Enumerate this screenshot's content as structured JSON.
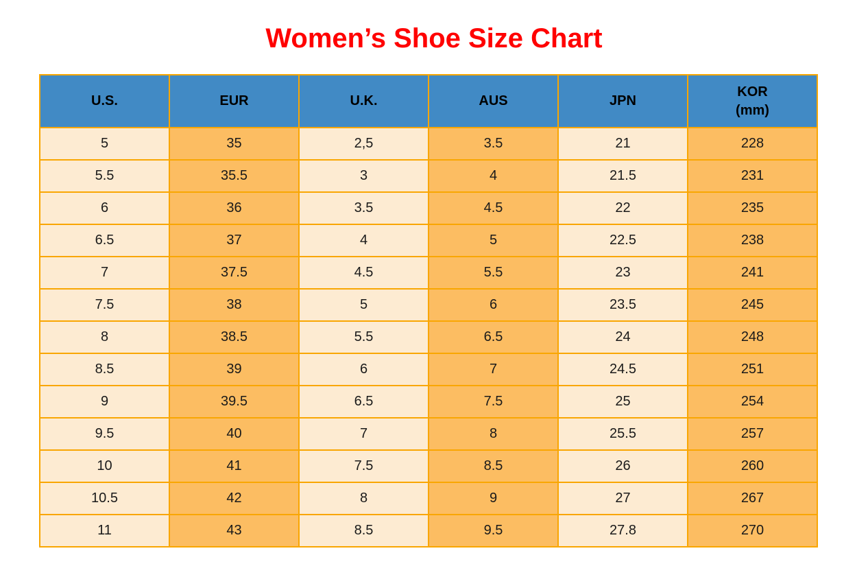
{
  "page": {
    "title": "Women’s Shoe Size Chart",
    "title_color": "#ff0000"
  },
  "chart_data": {
    "type": "table",
    "title": "Women’s Shoe Size Chart",
    "columns": [
      "U.S.",
      "EUR",
      "U.K.",
      "AUS",
      "JPN",
      "KOR\n(mm)"
    ],
    "column_keys": [
      "us",
      "eur",
      "uk",
      "aus",
      "jpn",
      "kor"
    ],
    "rows": [
      [
        "5",
        "35",
        "2,5",
        "3.5",
        "21",
        "228"
      ],
      [
        "5.5",
        "35.5",
        "3",
        "4",
        "21.5",
        "231"
      ],
      [
        "6",
        "36",
        "3.5",
        "4.5",
        "22",
        "235"
      ],
      [
        "6.5",
        "37",
        "4",
        "5",
        "22.5",
        "238"
      ],
      [
        "7",
        "37.5",
        "4.5",
        "5.5",
        "23",
        "241"
      ],
      [
        "7.5",
        "38",
        "5",
        "6",
        "23.5",
        "245"
      ],
      [
        "8",
        "38.5",
        "5.5",
        "6.5",
        "24",
        "248"
      ],
      [
        "8.5",
        "39",
        "6",
        "7",
        "24.5",
        "251"
      ],
      [
        "9",
        "39.5",
        "6.5",
        "7.5",
        "25",
        "254"
      ],
      [
        "9.5",
        "40",
        "7",
        "8",
        "25.5",
        "257"
      ],
      [
        "10",
        "41",
        "7.5",
        "8.5",
        "26",
        "260"
      ],
      [
        "10.5",
        "42",
        "8",
        "9",
        "27",
        "267"
      ],
      [
        "11",
        "43",
        "8.5",
        "9.5",
        "27.8",
        "270"
      ]
    ],
    "layout": {
      "header_bg": "#418ac5",
      "header_text_color": "#000000",
      "grid_color": "#f9a602",
      "column_fill_pattern": [
        "#fdebd2",
        "#fcbd62",
        "#fdebd2",
        "#fcbd62",
        "#fdebd2",
        "#fcbd62"
      ],
      "cell_text_color": "#1a1a1a",
      "legend_position": "none",
      "grid": true
    }
  }
}
